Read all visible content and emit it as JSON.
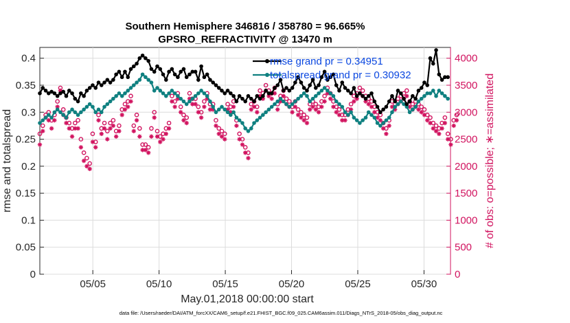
{
  "chart_data": {
    "type": "line",
    "title_line1": "Southern Hemisphere 346816 / 358780 = 96.665%",
    "title_line2": "GPSRO_REFRACTIVITY @ 13470 m",
    "xlabel": "May.01,2018 00:00:00 start",
    "ylabel_left": "rmse and totalspread",
    "ylabel_right": "# of obs: o=possible; ∗=assimilated",
    "footer": "data file: /Users/raeder/DAI/ATM_forcXX/CAM6_setup/f.e21.FHIST_BGC.f09_025.CAM6assim.011/Diags_NTrS_2018-05/obs_diag_output.nc",
    "x_tick_labels": [
      "05/05",
      "05/10",
      "05/15",
      "05/20",
      "05/25",
      "05/30"
    ],
    "x_tick_days": [
      5,
      10,
      15,
      20,
      25,
      30
    ],
    "x_range": [
      1,
      32
    ],
    "ylim_left": [
      0,
      0.42
    ],
    "y_ticks_left": [
      "0",
      "0.05",
      "0.1",
      "0.15",
      "0.2",
      "0.25",
      "0.3",
      "0.35",
      "0.4"
    ],
    "ylim_right": [
      0,
      4200
    ],
    "y_ticks_right": [
      "0",
      "500",
      "1000",
      "1500",
      "2000",
      "2500",
      "3000",
      "3500",
      "4000"
    ],
    "legend": {
      "placement": "top-right"
    },
    "colors": {
      "rmse": "#000000",
      "spread": "#0f8080",
      "obs": "#d1135f",
      "legend_text": "#0a47e0"
    },
    "series": [
      {
        "name": "rmse grand pr = 0.34951",
        "axis": "left",
        "values": [
          0.335,
          0.345,
          0.34,
          0.335,
          0.338,
          0.335,
          0.33,
          0.335,
          0.338,
          0.33,
          0.34,
          0.335,
          0.325,
          0.32,
          0.335,
          0.33,
          0.34,
          0.345,
          0.35,
          0.345,
          0.355,
          0.35,
          0.355,
          0.36,
          0.355,
          0.36,
          0.37,
          0.375,
          0.365,
          0.375,
          0.365,
          0.38,
          0.385,
          0.39,
          0.4,
          0.405,
          0.4,
          0.395,
          0.38,
          0.375,
          0.385,
          0.38,
          0.37,
          0.36,
          0.375,
          0.38,
          0.37,
          0.365,
          0.375,
          0.38,
          0.365,
          0.37,
          0.375,
          0.375,
          0.36,
          0.385,
          0.365,
          0.37,
          0.36,
          0.355,
          0.35,
          0.345,
          0.34,
          0.335,
          0.34,
          0.335,
          0.33,
          0.32,
          0.33,
          0.325,
          0.32,
          0.33,
          0.325,
          0.32,
          0.33,
          0.325,
          0.33,
          0.34,
          0.335,
          0.335,
          0.345,
          0.35,
          0.36,
          0.34,
          0.345,
          0.34,
          0.345,
          0.355,
          0.365,
          0.355,
          0.345,
          0.34,
          0.35,
          0.36,
          0.345,
          0.35,
          0.365,
          0.375,
          0.36,
          0.365,
          0.37,
          0.35,
          0.34,
          0.355,
          0.345,
          0.34,
          0.335,
          0.345,
          0.33,
          0.335,
          0.33,
          0.325,
          0.33,
          0.335,
          0.32,
          0.31,
          0.3,
          0.305,
          0.31,
          0.32,
          0.33,
          0.32,
          0.34,
          0.335,
          0.325,
          0.315,
          0.32,
          0.33,
          0.325,
          0.34,
          0.345,
          0.355,
          0.35,
          0.4,
          0.39,
          0.415,
          0.37,
          0.36,
          0.365,
          0.365
        ]
      },
      {
        "name": "totalspread grand pr = 0.30932",
        "axis": "left",
        "values": [
          0.28,
          0.285,
          0.29,
          0.295,
          0.29,
          0.3,
          0.305,
          0.3,
          0.295,
          0.29,
          0.3,
          0.305,
          0.3,
          0.295,
          0.3,
          0.305,
          0.31,
          0.315,
          0.31,
          0.3,
          0.305,
          0.3,
          0.31,
          0.315,
          0.32,
          0.325,
          0.33,
          0.335,
          0.33,
          0.335,
          0.34,
          0.345,
          0.35,
          0.355,
          0.36,
          0.37,
          0.365,
          0.36,
          0.355,
          0.34,
          0.345,
          0.34,
          0.335,
          0.33,
          0.335,
          0.34,
          0.335,
          0.33,
          0.325,
          0.32,
          0.315,
          0.32,
          0.325,
          0.33,
          0.335,
          0.34,
          0.335,
          0.33,
          0.32,
          0.31,
          0.3,
          0.305,
          0.31,
          0.305,
          0.3,
          0.295,
          0.3,
          0.29,
          0.285,
          0.28,
          0.27,
          0.265,
          0.27,
          0.28,
          0.285,
          0.29,
          0.295,
          0.3,
          0.305,
          0.31,
          0.315,
          0.32,
          0.325,
          0.32,
          0.315,
          0.31,
          0.315,
          0.32,
          0.325,
          0.33,
          0.335,
          0.33,
          0.32,
          0.325,
          0.33,
          0.335,
          0.34,
          0.345,
          0.34,
          0.335,
          0.33,
          0.32,
          0.315,
          0.31,
          0.3,
          0.295,
          0.3,
          0.29,
          0.285,
          0.28,
          0.285,
          0.29,
          0.3,
          0.295,
          0.29,
          0.28,
          0.275,
          0.28,
          0.285,
          0.29,
          0.3,
          0.31,
          0.315,
          0.32,
          0.315,
          0.31,
          0.3,
          0.305,
          0.31,
          0.32,
          0.325,
          0.33,
          0.335,
          0.335,
          0.34,
          0.33,
          0.34,
          0.335,
          0.33,
          0.325
        ]
      },
      {
        "name": "possible",
        "axis": "right",
        "values": [
          2600,
          2750,
          2950,
          3000,
          2850,
          2950,
          3200,
          3450,
          3050,
          2900,
          2800,
          2700,
          2800,
          2850,
          2500,
          2250,
          2150,
          2050,
          2600,
          2450,
          2950,
          2700,
          2800,
          2650,
          2800,
          2850,
          2650,
          2750,
          3050,
          3150,
          3200,
          3300,
          2750,
          2950,
          2700,
          2400,
          2400,
          2350,
          2700,
          3000,
          2650,
          2550,
          2600,
          2700,
          2800,
          3300,
          3200,
          3350,
          3100,
          2950,
          2900,
          3350,
          3250,
          3250,
          3100,
          3000,
          3200,
          3350,
          3150,
          3150,
          2850,
          2700,
          2650,
          2600,
          3150,
          3100,
          3200,
          2850,
          2600,
          2500,
          2350,
          2250,
          3150,
          3200,
          3100,
          3400,
          3350,
          3500,
          3400,
          3350,
          3450,
          3150,
          3300,
          3400,
          3250,
          3200,
          3100,
          3200,
          3050,
          3000,
          2950,
          2900,
          3150,
          3200,
          3150,
          3100,
          3200,
          3300,
          3450,
          3350,
          3200,
          3100,
          3050,
          2950,
          2950,
          3050,
          3150,
          3300,
          3350,
          3450,
          3400,
          3300,
          3250,
          3200,
          3100,
          3000,
          2950,
          2800,
          2700,
          2850,
          3200,
          3150,
          3250,
          3300,
          3350,
          3400,
          3200,
          3150,
          3200,
          3150,
          3100,
          3050,
          2950,
          2900,
          2800,
          2750,
          2700,
          2800,
          2900,
          2600,
          2500,
          2850,
          2950
        ]
      },
      {
        "name": "assimilated",
        "axis": "right",
        "values": [
          2400,
          2650,
          2900,
          2850,
          2700,
          2850,
          3100,
          3400,
          2950,
          2800,
          2700,
          2550,
          2700,
          2700,
          2350,
          2100,
          2000,
          1950,
          2450,
          2350,
          2850,
          2600,
          2700,
          2500,
          2700,
          2750,
          2550,
          2650,
          2950,
          3050,
          3100,
          3200,
          2650,
          2850,
          2550,
          2300,
          2300,
          2250,
          2550,
          2900,
          2550,
          2450,
          2500,
          2600,
          2700,
          3200,
          3100,
          3250,
          3000,
          2850,
          2800,
          3250,
          3150,
          3150,
          3000,
          2900,
          3100,
          3250,
          3050,
          3050,
          2750,
          2600,
          2550,
          2500,
          3050,
          3000,
          3100,
          2750,
          2500,
          2400,
          2250,
          2150,
          3050,
          3100,
          3000,
          3300,
          3250,
          3400,
          3300,
          3250,
          3350,
          3050,
          3200,
          3300,
          3150,
          3100,
          3000,
          3100,
          2950,
          2900,
          2850,
          2800,
          3050,
          3100,
          3050,
          3000,
          3100,
          3200,
          3350,
          3250,
          3100,
          3000,
          2950,
          2850,
          2850,
          2950,
          3050,
          3200,
          3250,
          3350,
          3300,
          3200,
          3150,
          3100,
          3000,
          2900,
          2850,
          2700,
          2600,
          2750,
          3100,
          3050,
          3150,
          3200,
          3250,
          3300,
          3100,
          3050,
          3100,
          3050,
          3000,
          2950,
          2850,
          2800,
          2700,
          2650,
          2600,
          2700,
          2800,
          2500,
          2400,
          2750,
          2850
        ]
      }
    ]
  }
}
